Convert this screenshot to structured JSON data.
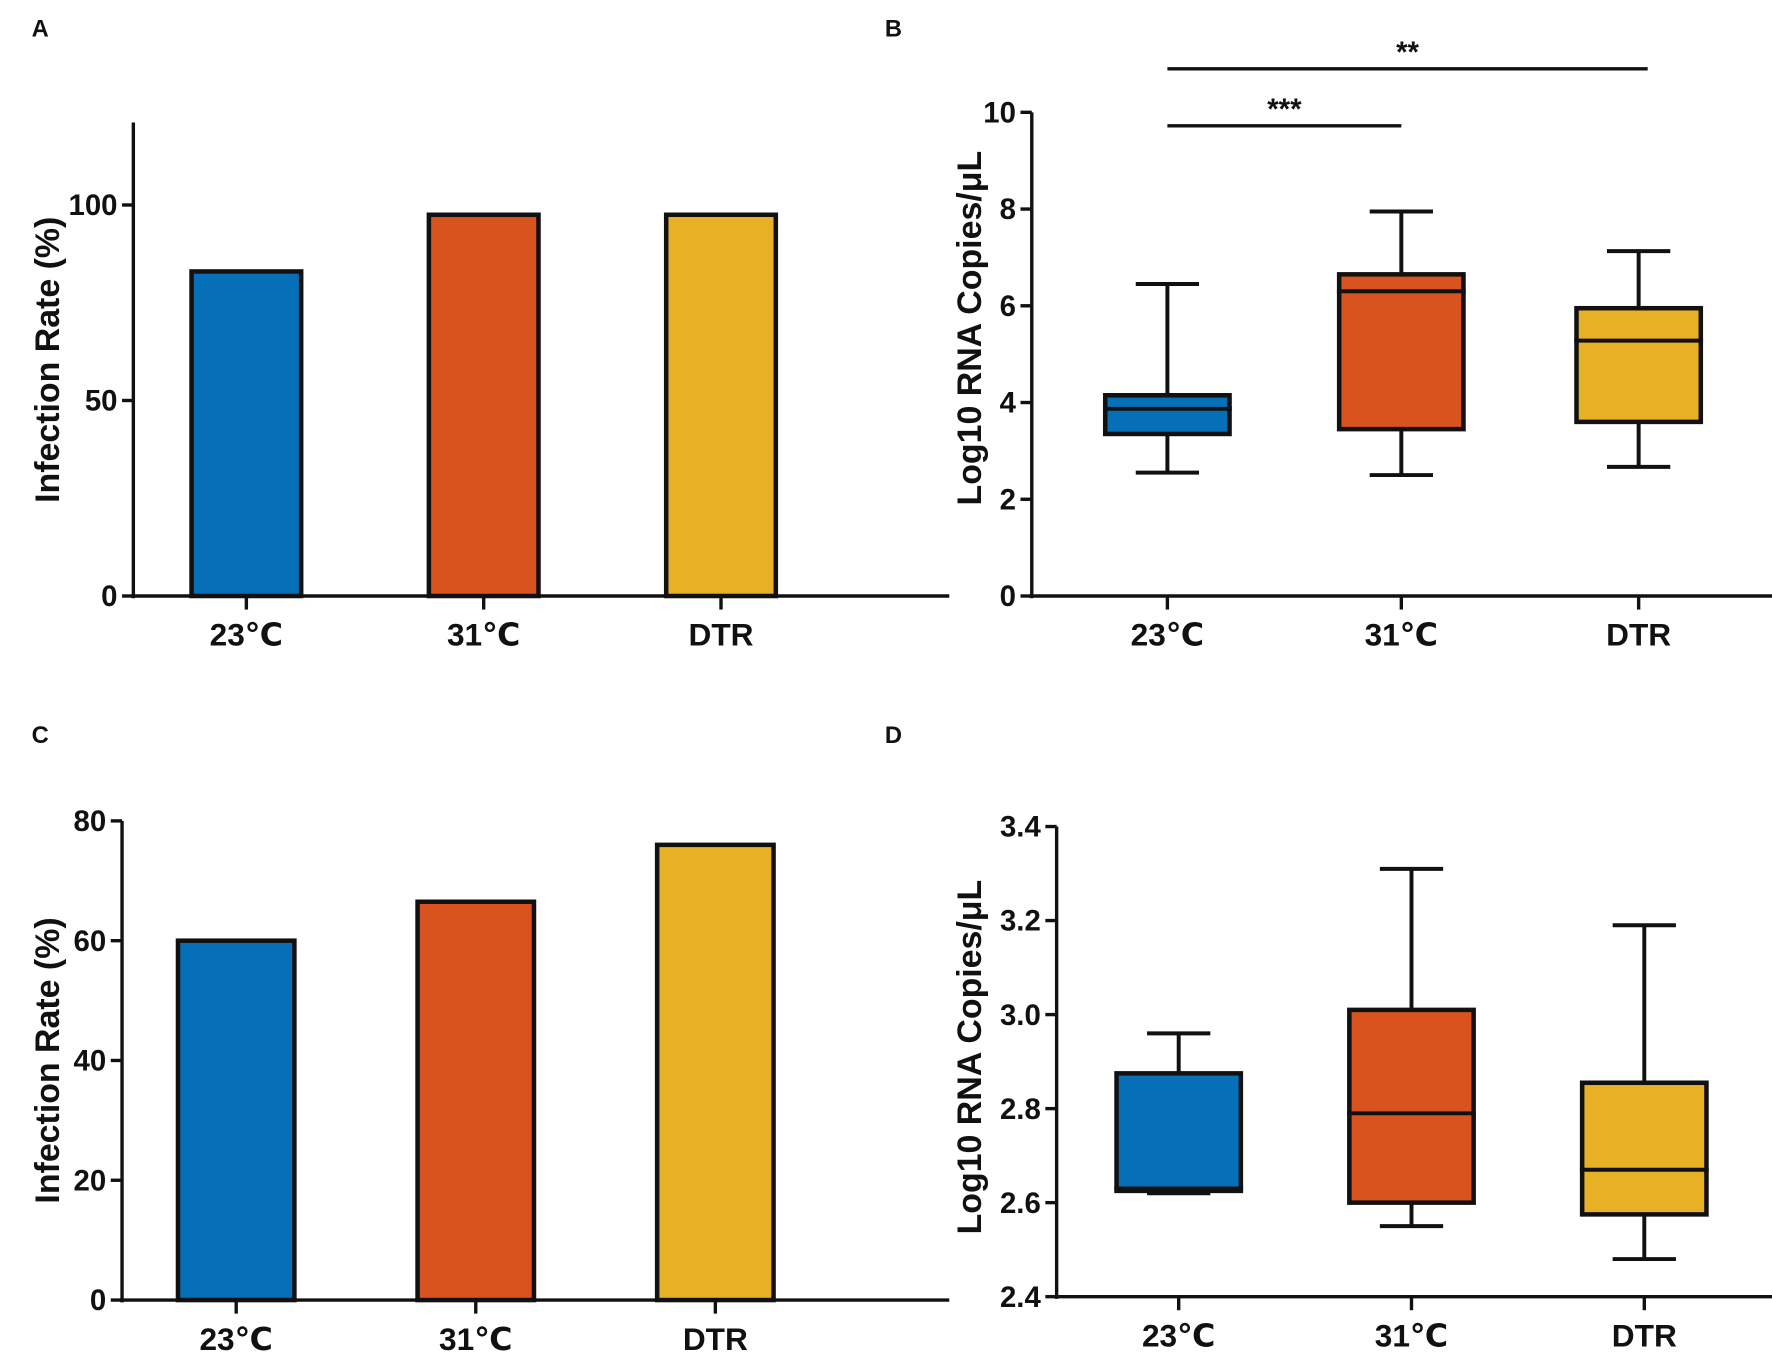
{
  "colors": {
    "23C": "#0570b8",
    "31C": "#d9531e",
    "DTR": "#e8b025",
    "stroke": "#111111"
  },
  "chart_data": [
    {
      "panel": "A",
      "type": "bar",
      "categories": [
        "23℃",
        "31℃",
        "DTR"
      ],
      "values": [
        83,
        97.5,
        97.5
      ],
      "ylabel": "Infection Rate (%)",
      "yticks": [
        0,
        50,
        100
      ],
      "ylim": [
        0,
        121
      ]
    },
    {
      "panel": "B",
      "type": "box",
      "categories": [
        "23℃",
        "31℃",
        "DTR"
      ],
      "boxes": [
        {
          "min": 2.55,
          "q1": 3.35,
          "median": 3.87,
          "q3": 4.15,
          "max": 6.45
        },
        {
          "min": 2.5,
          "q1": 3.45,
          "median": 6.3,
          "q3": 6.65,
          "max": 7.95
        },
        {
          "min": 2.67,
          "q1": 3.6,
          "median": 5.28,
          "q3": 5.95,
          "max": 7.13
        }
      ],
      "ylabel": "Log10 RNA Copies/μL",
      "yticks": [
        0,
        2,
        4,
        6,
        8,
        10
      ],
      "ylim": [
        0,
        10
      ],
      "significance": [
        {
          "from": 0,
          "to": 1,
          "label": "***",
          "y": 9.72
        },
        {
          "from": 0,
          "to": 2,
          "label": "**",
          "y": 10.9
        }
      ]
    },
    {
      "panel": "C",
      "type": "bar",
      "categories": [
        "23℃",
        "31℃",
        "DTR"
      ],
      "values": [
        60,
        66.5,
        76
      ],
      "ylabel": "Infection Rate (%)",
      "yticks": [
        0,
        20,
        40,
        60,
        80
      ],
      "ylim": [
        0,
        80
      ]
    },
    {
      "panel": "D",
      "type": "box",
      "categories": [
        "23℃",
        "31℃",
        "DTR"
      ],
      "boxes": [
        {
          "min": 2.62,
          "q1": 2.625,
          "median": 2.63,
          "q3": 2.875,
          "max": 2.96
        },
        {
          "min": 2.55,
          "q1": 2.6,
          "median": 2.79,
          "q3": 3.01,
          "max": 3.31
        },
        {
          "min": 2.48,
          "q1": 2.575,
          "median": 2.67,
          "q3": 2.855,
          "max": 3.19
        }
      ],
      "ylabel": "Log10 RNA Copies/μL",
      "yticks": [
        "2.4",
        "2.6",
        "2.8",
        "3.0",
        "3.2",
        "3.4"
      ],
      "ylim": [
        2.4,
        3.4
      ],
      "significance": []
    }
  ]
}
